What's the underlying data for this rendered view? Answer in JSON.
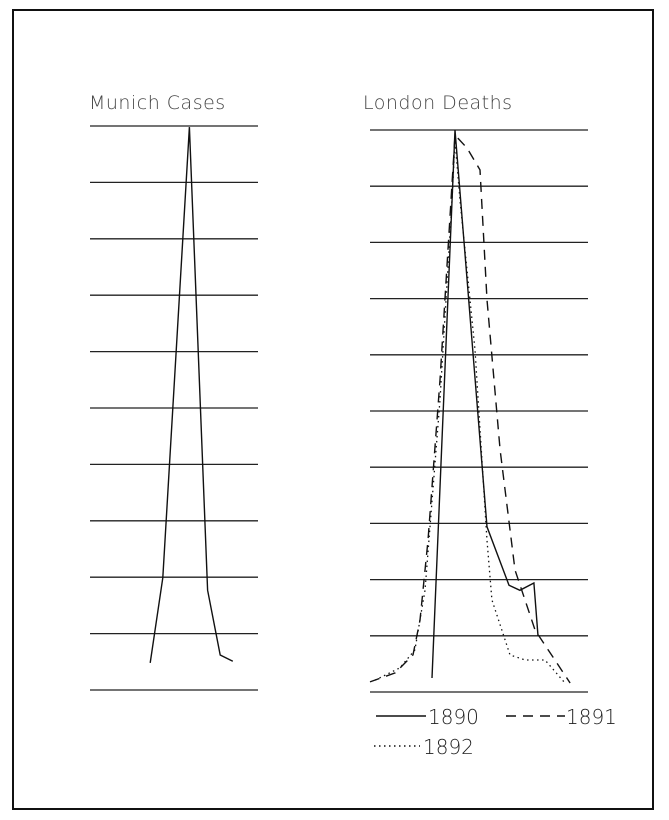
{
  "chart_data": [
    {
      "type": "line",
      "title": "Munich Cases",
      "grid": true,
      "gridlines": 11,
      "ylim": [
        0,
        10
      ],
      "xlim": [
        0,
        12
      ],
      "series": [
        {
          "x": [
            4.3,
            5.2,
            7.1,
            8.4,
            9.3,
            10.2
          ],
          "y": [
            0.48,
            1.99,
            9.98,
            1.77,
            0.62,
            0.51
          ],
          "style": "solid"
        }
      ]
    },
    {
      "type": "line",
      "title": "London Deaths",
      "grid": true,
      "gridlines": 11,
      "ylim": [
        0,
        10
      ],
      "xlim": [
        0,
        15.6
      ],
      "legend": "bottom",
      "series": [
        {
          "name": "1890",
          "style": "solid",
          "x": [
            4.43,
            6.07,
            8.36,
            9.93,
            10.71,
            11.71,
            12.0
          ],
          "y": [
            0.25,
            10.0,
            2.94,
            1.9,
            1.81,
            1.94,
            1.0
          ]
        },
        {
          "name": "1891",
          "style": "dashed",
          "x": [
            0,
            1.79,
            3.07,
            3.57,
            4.14,
            5.0,
            6.07,
            6.93,
            7.86,
            8.36,
            9.29,
            10.36,
            11.79,
            13.21,
            14.29
          ],
          "y": [
            0.18,
            0.34,
            0.66,
            1.28,
            2.7,
            5.55,
            9.91,
            9.68,
            9.29,
            6.98,
            4.31,
            2.17,
            1.1,
            0.57,
            0.16
          ]
        },
        {
          "name": "1892",
          "style": "dotted",
          "x": [
            0.36,
            2.14,
            3.21,
            3.93,
            5.0,
            5.86,
            6.07,
            6.43,
            7.5,
            8.36,
            8.71,
            10.0,
            11.07,
            12.5,
            13.93
          ],
          "y": [
            0.21,
            0.43,
            0.75,
            1.81,
            5.2,
            8.75,
            9.82,
            8.75,
            6.09,
            2.7,
            1.64,
            0.66,
            0.57,
            0.57,
            0.16
          ]
        }
      ]
    }
  ],
  "colors": {
    "ink": "#111111",
    "paper": "#ffffff"
  }
}
